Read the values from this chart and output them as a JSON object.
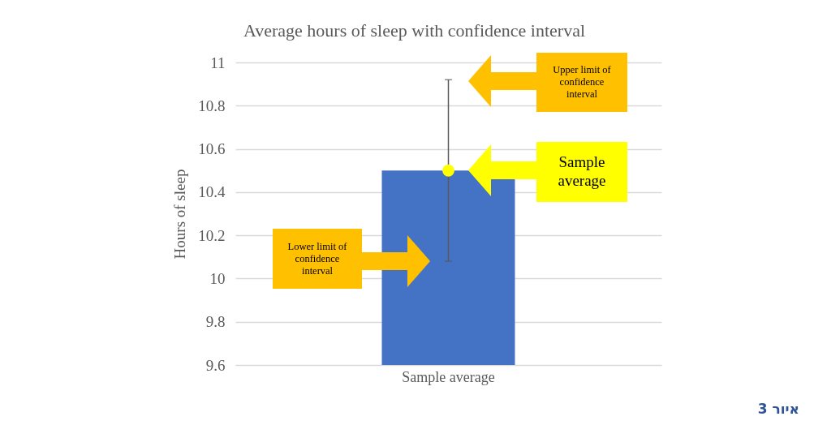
{
  "chart_data": {
    "type": "bar",
    "title": "Average hours of sleep with confidence interval",
    "ylabel": "Hours of sleep",
    "categories": [
      "Sample average"
    ],
    "series": [
      {
        "color": "#4472c4",
        "values": [
          10.5
        ],
        "errors": [
          [
            10.08,
            10.92
          ]
        ]
      },
      {
        "type": "scatter",
        "color": "#ffff00",
        "x": [
          "Sample average"
        ],
        "values": [
          10.5
        ]
      }
    ],
    "ylim": [
      9.6,
      11
    ],
    "yticks": [
      9.6,
      9.8,
      10,
      10.2,
      10.4,
      10.6,
      10.8,
      11
    ],
    "grid": "y",
    "marker": "circle",
    "annotations": [
      "Upper limit of confidence interval",
      "Sample average",
      "Lower limit of confidence interval",
      "איור 3"
    ]
  }
}
